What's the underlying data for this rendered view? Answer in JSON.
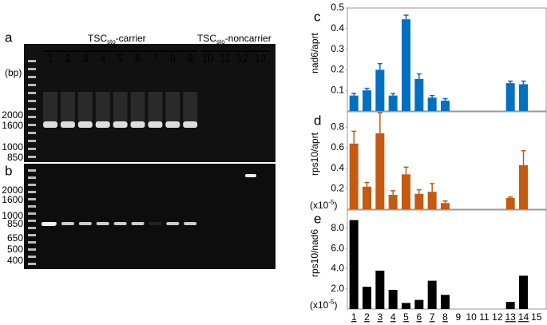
{
  "gels": {
    "panel_a": "a",
    "panel_b": "b",
    "carrier": {
      "main": "TSC",
      "sub": "sto",
      "rest": "-carrier"
    },
    "noncarrier": {
      "main": "TSC",
      "sub": "sto",
      "rest": "-noncarrier"
    },
    "lanes": [
      "1",
      "2",
      "3",
      "4",
      "5",
      "6",
      "7",
      "8",
      "9",
      "10",
      "11",
      "12",
      "13"
    ],
    "bp": "(bp)",
    "ladder_a": [
      "2000",
      "1600",
      "1000",
      "850"
    ],
    "ladder_b": [
      "2000",
      "1600",
      "1000",
      "850",
      "650",
      "500",
      "400"
    ]
  },
  "chart_data": [
    {
      "type": "bar",
      "panel": "c",
      "ylabel": "nad6/aprt",
      "color": "#0070c0",
      "categories": [
        "1",
        "2",
        "3",
        "4",
        "5",
        "6",
        "7",
        "8",
        "9",
        "10",
        "11",
        "12",
        "13",
        "14",
        "15"
      ],
      "underline": [
        true,
        true,
        true,
        true,
        true,
        true,
        true,
        true,
        false,
        false,
        false,
        false,
        true,
        true,
        false
      ],
      "values": [
        0.075,
        0.1,
        0.2,
        0.075,
        0.445,
        0.155,
        0.065,
        0.05,
        null,
        null,
        null,
        null,
        0.135,
        0.13,
        null
      ],
      "errors": [
        0.01,
        0.01,
        0.03,
        0.01,
        0.02,
        0.025,
        0.01,
        0.01,
        null,
        null,
        null,
        null,
        0.01,
        0.015,
        null
      ],
      "ylim": [
        0,
        0.5
      ],
      "yticks": [
        0.1,
        0.2,
        0.3,
        0.4,
        0.5
      ]
    },
    {
      "type": "bar",
      "panel": "d",
      "ylabel": "rps10/aprt",
      "unit": {
        "base": "(x10",
        "exp": "-5",
        "close": ")"
      },
      "color": "#c55a11",
      "values": [
        0.64,
        0.22,
        0.74,
        0.14,
        0.34,
        0.15,
        0.17,
        0.06,
        null,
        null,
        null,
        null,
        0.11,
        0.43,
        null
      ],
      "errors": [
        0.12,
        0.04,
        0.2,
        0.04,
        0.07,
        0.04,
        0.08,
        0.02,
        null,
        null,
        null,
        null,
        0.01,
        0.14,
        null
      ],
      "ylim": [
        0,
        0.95
      ],
      "yticks": [
        0.2,
        0.4,
        0.6,
        0.8
      ]
    },
    {
      "type": "bar",
      "panel": "e",
      "ylabel": "rps10/nad6",
      "unit": {
        "base": "(x10",
        "exp": "-5",
        "close": ")"
      },
      "color": "#000000",
      "values": [
        8.8,
        2.2,
        3.8,
        1.9,
        0.6,
        0.9,
        2.8,
        1.4,
        null,
        null,
        null,
        null,
        0.7,
        3.3,
        null
      ],
      "ylim": [
        0,
        9.8
      ],
      "yticks": [
        {
          "value": 2,
          "label": "2.0"
        },
        {
          "value": 4,
          "label": "4.0"
        },
        {
          "value": 6,
          "label": "6.0"
        },
        {
          "value": 8,
          "label": "8.0"
        }
      ]
    }
  ]
}
